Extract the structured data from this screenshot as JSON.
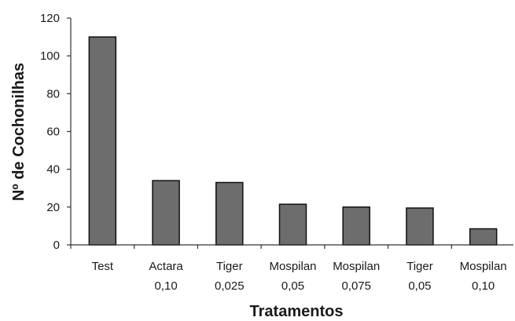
{
  "chart_data": {
    "type": "bar",
    "categories": [
      [
        "Test"
      ],
      [
        "Actara",
        "0,10"
      ],
      [
        "Tiger",
        "0,025"
      ],
      [
        "Mospilan",
        "0,05"
      ],
      [
        "Mospilan",
        "0,075"
      ],
      [
        "Tiger",
        "0,05"
      ],
      [
        "Mospilan",
        "0,10"
      ]
    ],
    "values": [
      110,
      34,
      33,
      21.5,
      20,
      19.5,
      8.5
    ],
    "title": "",
    "xlabel": "Tratamentos",
    "ylabel": "Nº de Cochonilhas",
    "ylim": [
      0,
      120
    ],
    "yticks": [
      0,
      20,
      40,
      60,
      80,
      100,
      120
    ],
    "grid": false,
    "legend": "none",
    "colors": {
      "bar_fill": "#6d6d6d",
      "bar_stroke": "#111111",
      "axis": "#333333",
      "text": "#1a1a1a"
    }
  }
}
